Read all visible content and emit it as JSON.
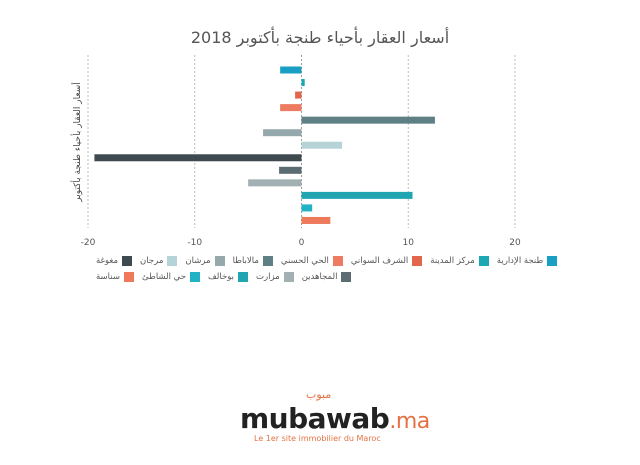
{
  "chart_data": {
    "type": "bar",
    "orientation": "horizontal",
    "title": "أسعار العقار بأحياء طنجة بأكتوبر 2018",
    "ylabel": "أسعار العقار بأحياء طنجة بأكتوبر",
    "xlabel": "",
    "xlim": [
      -20,
      20
    ],
    "xticks": [
      -20,
      -10,
      0,
      10,
      20
    ],
    "grid": true,
    "legend_position": "bottom",
    "series": [
      {
        "name": "طنجة الإدارية",
        "value": -2,
        "color": "#1a9fc4"
      },
      {
        "name": "مركز المدينة",
        "value": 0.3,
        "color": "#1aa9b4"
      },
      {
        "name": "الشرف السواني",
        "value": -0.6,
        "color": "#e2664c"
      },
      {
        "name": "الحي الحسني",
        "value": -2,
        "color": "#ec7b61"
      },
      {
        "name": "مالاباطا",
        "value": 12.5,
        "color": "#5e7f83"
      },
      {
        "name": "مرشان",
        "value": -3.6,
        "color": "#95a8ab"
      },
      {
        "name": "مرجان",
        "value": 3.8,
        "color": "#b6d4d8"
      },
      {
        "name": "مغوغة",
        "value": -19.4,
        "color": "#3f4a50"
      },
      {
        "name": "المجاهدين",
        "value": -2.1,
        "color": "#5b6d72"
      },
      {
        "name": "مزارت",
        "value": -5,
        "color": "#a2b0b3"
      },
      {
        "name": "بوخالف",
        "value": 10.4,
        "color": "#21a5b1"
      },
      {
        "name": "حي الشاطئ",
        "value": 1,
        "color": "#21b2c3"
      },
      {
        "name": "سناسة",
        "value": 2.7,
        "color": "#ee7a5b"
      }
    ]
  },
  "logo": {
    "word": "mubawab",
    "suffix": ".ma",
    "arabic": "مبوب",
    "tagline": "Le 1er site immobilier du Maroc"
  }
}
